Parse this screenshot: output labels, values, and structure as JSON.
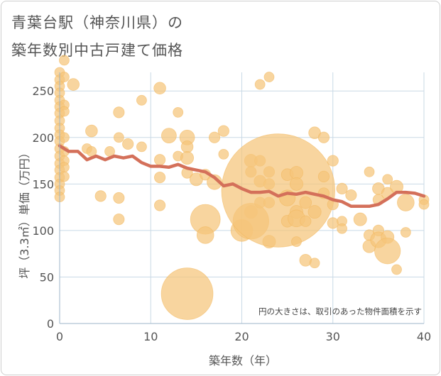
{
  "title_line1": "青葉台駅（神奈川県）の",
  "title_line2": "築年数別中古戸建て価格",
  "chart_data": {
    "type": "scatter",
    "xlabel": "築年数（年）",
    "ylabel": "坪（3.3㎡）単価（万円）",
    "note": "円の大きさは、取引のあった物件面積を示す",
    "xlim": [
      0,
      40
    ],
    "ylim": [
      0,
      270
    ],
    "xticks": [
      "0",
      "10",
      "20",
      "30",
      "40"
    ],
    "yticks": [
      "0",
      "50",
      "100",
      "150",
      "200",
      "250"
    ],
    "grid": true,
    "bubble_color": "#f5c57a",
    "line_color": "#d4705a",
    "points": [
      {
        "x": 0,
        "y": 270,
        "s": 1
      },
      {
        "x": 0,
        "y": 262,
        "s": 1
      },
      {
        "x": 0,
        "y": 255,
        "s": 1
      },
      {
        "x": 0,
        "y": 248,
        "s": 1
      },
      {
        "x": 0,
        "y": 240,
        "s": 1
      },
      {
        "x": 0,
        "y": 233,
        "s": 1
      },
      {
        "x": 0,
        "y": 226,
        "s": 1
      },
      {
        "x": 0,
        "y": 218,
        "s": 1
      },
      {
        "x": 0,
        "y": 210,
        "s": 1
      },
      {
        "x": 0,
        "y": 203,
        "s": 1
      },
      {
        "x": 0,
        "y": 196,
        "s": 1
      },
      {
        "x": 0,
        "y": 188,
        "s": 1
      },
      {
        "x": 0,
        "y": 180,
        "s": 1
      },
      {
        "x": 0,
        "y": 172,
        "s": 1
      },
      {
        "x": 0,
        "y": 165,
        "s": 1
      },
      {
        "x": 0,
        "y": 157,
        "s": 1
      },
      {
        "x": 0,
        "y": 150,
        "s": 1
      },
      {
        "x": 0,
        "y": 143,
        "s": 1
      },
      {
        "x": 0,
        "y": 136,
        "s": 1
      },
      {
        "x": 0.5,
        "y": 283,
        "s": 1
      },
      {
        "x": 0.5,
        "y": 265,
        "s": 1
      },
      {
        "x": 0.5,
        "y": 235,
        "s": 1
      },
      {
        "x": 0.5,
        "y": 228,
        "s": 1
      },
      {
        "x": 0.5,
        "y": 200,
        "s": 1
      },
      {
        "x": 0.5,
        "y": 185,
        "s": 1
      },
      {
        "x": 0.5,
        "y": 175,
        "s": 1
      },
      {
        "x": 0.5,
        "y": 168,
        "s": 1
      },
      {
        "x": 0.5,
        "y": 158,
        "s": 1
      },
      {
        "x": 1.5,
        "y": 257,
        "s": 1.2
      },
      {
        "x": 3,
        "y": 188,
        "s": 1
      },
      {
        "x": 3.5,
        "y": 207,
        "s": 1.2
      },
      {
        "x": 3.5,
        "y": 185,
        "s": 1
      },
      {
        "x": 4.5,
        "y": 137,
        "s": 1.1
      },
      {
        "x": 5.5,
        "y": 185,
        "s": 1
      },
      {
        "x": 6.5,
        "y": 227,
        "s": 1.1
      },
      {
        "x": 6.5,
        "y": 200,
        "s": 1
      },
      {
        "x": 6.5,
        "y": 135,
        "s": 1.1
      },
      {
        "x": 6.5,
        "y": 112,
        "s": 1.1
      },
      {
        "x": 7.5,
        "y": 193,
        "s": 1.1
      },
      {
        "x": 9,
        "y": 240,
        "s": 1
      },
      {
        "x": 9,
        "y": 190,
        "s": 1
      },
      {
        "x": 11,
        "y": 253,
        "s": 1.2
      },
      {
        "x": 11,
        "y": 176,
        "s": 1.1
      },
      {
        "x": 11,
        "y": 157,
        "s": 1.1
      },
      {
        "x": 11,
        "y": 127,
        "s": 1.1
      },
      {
        "x": 12,
        "y": 202,
        "s": 1.5
      },
      {
        "x": 13,
        "y": 227,
        "s": 1
      },
      {
        "x": 13,
        "y": 180,
        "s": 1
      },
      {
        "x": 14,
        "y": 200,
        "s": 1.5
      },
      {
        "x": 14,
        "y": 190,
        "s": 1.2
      },
      {
        "x": 14,
        "y": 178,
        "s": 1.3
      },
      {
        "x": 14,
        "y": 162,
        "s": 1.1
      },
      {
        "x": 14,
        "y": 32,
        "s": 5.2
      },
      {
        "x": 15,
        "y": 155,
        "s": 1.3
      },
      {
        "x": 16,
        "y": 160,
        "s": 1.1
      },
      {
        "x": 16,
        "y": 112,
        "s": 3
      },
      {
        "x": 16,
        "y": 95,
        "s": 1.7
      },
      {
        "x": 17,
        "y": 200,
        "s": 1.1
      },
      {
        "x": 17,
        "y": 152,
        "s": 1.5
      },
      {
        "x": 18,
        "y": 207,
        "s": 1.1
      },
      {
        "x": 18,
        "y": 182,
        "s": 1
      },
      {
        "x": 20,
        "y": 100,
        "s": 2.2
      },
      {
        "x": 21,
        "y": 175,
        "s": 1.3
      },
      {
        "x": 21,
        "y": 163,
        "s": 1.1
      },
      {
        "x": 21,
        "y": 120,
        "s": 1.3
      },
      {
        "x": 21,
        "y": 110,
        "s": 3.6
      },
      {
        "x": 22,
        "y": 257,
        "s": 1
      },
      {
        "x": 22,
        "y": 175,
        "s": 1.1
      },
      {
        "x": 22,
        "y": 153,
        "s": 1.2
      },
      {
        "x": 22,
        "y": 130,
        "s": 1.1
      },
      {
        "x": 23,
        "y": 265,
        "s": 1
      },
      {
        "x": 23,
        "y": 163,
        "s": 1.1
      },
      {
        "x": 23,
        "y": 150,
        "s": 1.1
      },
      {
        "x": 23,
        "y": 130,
        "s": 1.1
      },
      {
        "x": 23,
        "y": 88,
        "s": 1.3
      },
      {
        "x": 24,
        "y": 143,
        "s": 11.4
      },
      {
        "x": 25,
        "y": 160,
        "s": 1.2
      },
      {
        "x": 25,
        "y": 110,
        "s": 1.2
      },
      {
        "x": 25,
        "y": 135,
        "s": 1.6
      },
      {
        "x": 26,
        "y": 162,
        "s": 1.3
      },
      {
        "x": 26,
        "y": 150,
        "s": 1.3
      },
      {
        "x": 26,
        "y": 120,
        "s": 1.3
      },
      {
        "x": 26,
        "y": 113,
        "s": 1.7
      },
      {
        "x": 26,
        "y": 88,
        "s": 1
      },
      {
        "x": 27,
        "y": 130,
        "s": 1.2
      },
      {
        "x": 27,
        "y": 110,
        "s": 1.1
      },
      {
        "x": 27,
        "y": 68,
        "s": 1.2
      },
      {
        "x": 28,
        "y": 205,
        "s": 1.2
      },
      {
        "x": 28,
        "y": 120,
        "s": 1.3
      },
      {
        "x": 28,
        "y": 65,
        "s": 1
      },
      {
        "x": 29,
        "y": 200,
        "s": 1.1
      },
      {
        "x": 29,
        "y": 158,
        "s": 1.1
      },
      {
        "x": 29,
        "y": 140,
        "s": 1.1
      },
      {
        "x": 30,
        "y": 175,
        "s": 1.1
      },
      {
        "x": 30,
        "y": 128,
        "s": 1.1
      },
      {
        "x": 30,
        "y": 108,
        "s": 1.1
      },
      {
        "x": 31,
        "y": 145,
        "s": 1.1
      },
      {
        "x": 31,
        "y": 110,
        "s": 1
      },
      {
        "x": 31,
        "y": 102,
        "s": 1
      },
      {
        "x": 32,
        "y": 138,
        "s": 1.1
      },
      {
        "x": 33,
        "y": 112,
        "s": 1.3
      },
      {
        "x": 34,
        "y": 163,
        "s": 1
      },
      {
        "x": 34,
        "y": 95,
        "s": 1.1
      },
      {
        "x": 34,
        "y": 83,
        "s": 1.3
      },
      {
        "x": 35,
        "y": 145,
        "s": 1.2
      },
      {
        "x": 35,
        "y": 133,
        "s": 1.1
      },
      {
        "x": 35,
        "y": 100,
        "s": 1.1
      },
      {
        "x": 35,
        "y": 90,
        "s": 1.6
      },
      {
        "x": 36,
        "y": 155,
        "s": 1
      },
      {
        "x": 36,
        "y": 140,
        "s": 1.2
      },
      {
        "x": 36,
        "y": 93,
        "s": 1.3
      },
      {
        "x": 36,
        "y": 78,
        "s": 2.6
      },
      {
        "x": 37,
        "y": 147,
        "s": 1.3
      },
      {
        "x": 37,
        "y": 58,
        "s": 1
      },
      {
        "x": 38,
        "y": 130,
        "s": 1.7
      },
      {
        "x": 38,
        "y": 98,
        "s": 1
      },
      {
        "x": 40,
        "y": 133,
        "s": 1
      },
      {
        "x": 40,
        "y": 128,
        "s": 1
      }
    ],
    "trend": {
      "x": [
        0,
        1,
        2,
        3,
        4,
        5,
        6,
        7,
        8,
        9,
        10,
        11,
        12,
        13,
        14,
        15,
        16,
        17,
        18,
        19,
        20,
        21,
        22,
        23,
        24,
        25,
        26,
        27,
        28,
        29,
        30,
        31,
        32,
        33,
        34,
        35,
        36,
        37,
        38,
        39,
        40
      ],
      "y": [
        191,
        185,
        185,
        176,
        180,
        176,
        180,
        178,
        180,
        173,
        169,
        169,
        168,
        171,
        167,
        165,
        163,
        157,
        148,
        150,
        145,
        141,
        141,
        142,
        137,
        140,
        139,
        141,
        139,
        137,
        133,
        131,
        126,
        126,
        126,
        128,
        134,
        141,
        141,
        140,
        137
      ]
    }
  }
}
